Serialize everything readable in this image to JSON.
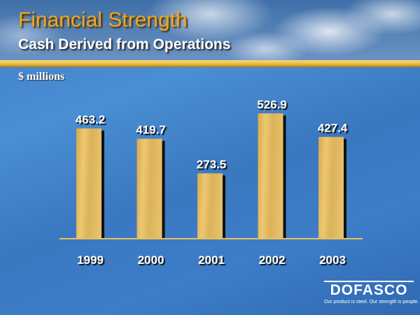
{
  "slide": {
    "title": "Financial Strength",
    "subtitle": "Cash Derived from Operations",
    "units_label": "$ millions"
  },
  "logo": {
    "name": "DOFASCO",
    "tagline": "Our product is steel. Our strength is people."
  },
  "colors": {
    "title": "#f3a51e",
    "bar": "#e0b85a",
    "background": "#3f7fc6"
  },
  "chart_data": {
    "type": "bar",
    "title": "Cash Derived from Operations",
    "ylabel": "$ millions",
    "categories": [
      "1999",
      "2000",
      "2001",
      "2002",
      "2003"
    ],
    "values": [
      463.2,
      419.7,
      273.5,
      526.9,
      427.4
    ],
    "data_labels": [
      "463.2",
      "419.7",
      "273.5",
      "526.9",
      "427.4"
    ],
    "ylim": [
      0,
      526.9
    ],
    "grid": false,
    "legend": "none"
  }
}
